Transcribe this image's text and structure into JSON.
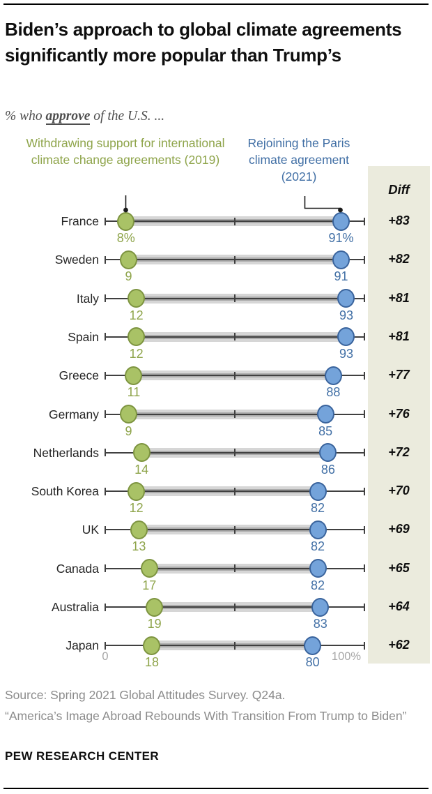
{
  "header": {
    "title": "Biden’s approach to global climate agreements significantly more popular than Trump’s"
  },
  "subtitle": {
    "prefix": "% who ",
    "emphasis": "approve",
    "suffix": " of the U.S. ..."
  },
  "chart_data": {
    "type": "scatter",
    "variant": "dumbbell-dot-plot",
    "title": "Biden’s approach to global climate agreements significantly more popular than Trump’s",
    "subtitle": "% who approve of the U.S. ...",
    "categories": [
      "France",
      "Sweden",
      "Italy",
      "Spain",
      "Greece",
      "Germany",
      "Netherlands",
      "South Korea",
      "UK",
      "Canada",
      "Australia",
      "Japan"
    ],
    "series": [
      {
        "name": "Withdrawing support for international climate change agreements (2019)",
        "color": "#a9c266",
        "edge_color": "#7d9440",
        "label_color": "#8ea44a",
        "values": [
          8,
          9,
          12,
          12,
          11,
          9,
          14,
          12,
          13,
          17,
          19,
          18
        ]
      },
      {
        "name": "Rejoining the Paris climate agreement (2021)",
        "color": "#74a3da",
        "edge_color": "#39639c",
        "label_color": "#416fa5",
        "values": [
          91,
          91,
          93,
          93,
          88,
          85,
          86,
          82,
          82,
          82,
          83,
          80
        ]
      }
    ],
    "diff_column": {
      "header": "Diff",
      "values": [
        "+83",
        "+82",
        "+81",
        "+81",
        "+77",
        "+76",
        "+72",
        "+70",
        "+69",
        "+65",
        "+64",
        "+62"
      ],
      "background": "#ebebdd"
    },
    "xlim": [
      0,
      100
    ],
    "ticks": [
      0,
      50,
      100
    ],
    "axis_end_labels": {
      "left": "0",
      "right": "100%"
    },
    "first_row_value_suffix": "%",
    "legend_position": "top",
    "grid": false,
    "band_color": "#d6d6d6",
    "axis_color": "#404040"
  },
  "footer": {
    "source_line1": "Source: Spring 2021 Global Attitudes Survey. Q24a.",
    "source_line2": "“America’s Image Abroad Rebounds With Transition From Trump to Biden”",
    "brand": "PEW RESEARCH CENTER"
  }
}
